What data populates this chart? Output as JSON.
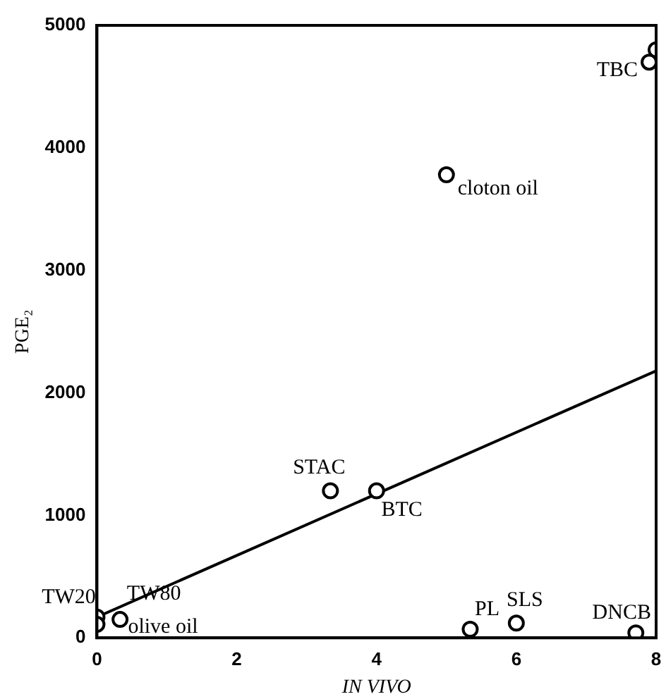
{
  "chart_data": {
    "type": "scatter",
    "xlabel": "IN VIVO",
    "ylabel": "PGE₂",
    "xlim": [
      0,
      8
    ],
    "xticks": [
      0,
      2,
      4,
      6,
      8
    ],
    "ylim": [
      0,
      5000
    ],
    "yticks": [
      0,
      1000,
      2000,
      3000,
      4000,
      5000
    ],
    "series": [
      {
        "marker": "circle",
        "color": "#000000",
        "x": [
          0,
          0,
          0.33,
          3.34,
          4,
          5,
          5.34,
          6,
          7.71,
          8,
          7.9
        ],
        "values": [
          170,
          110,
          150,
          1200,
          1200,
          3780,
          70,
          120,
          40,
          4800,
          4700
        ]
      },
      {
        "type": "line",
        "color": "#000000",
        "x": [
          0,
          8
        ],
        "values": [
          170,
          2180
        ]
      }
    ],
    "annotations": [
      {
        "text": "TW20",
        "x": 0,
        "y": 170
      },
      {
        "text": "TW80",
        "x": 0.33,
        "y": 150
      },
      {
        "text": "olive oil",
        "x": 0,
        "y": 110
      },
      {
        "text": "STAC",
        "x": 3.34,
        "y": 1200
      },
      {
        "text": "BTC",
        "x": 4,
        "y": 1200
      },
      {
        "text": "cloton oil",
        "x": 5,
        "y": 3780
      },
      {
        "text": "PL",
        "x": 5.34,
        "y": 70
      },
      {
        "text": "SLS",
        "x": 6,
        "y": 120
      },
      {
        "text": "DNCB",
        "x": 7.71,
        "y": 40
      },
      {
        "text": "TBC",
        "x": 7.9,
        "y": 4700
      }
    ]
  }
}
